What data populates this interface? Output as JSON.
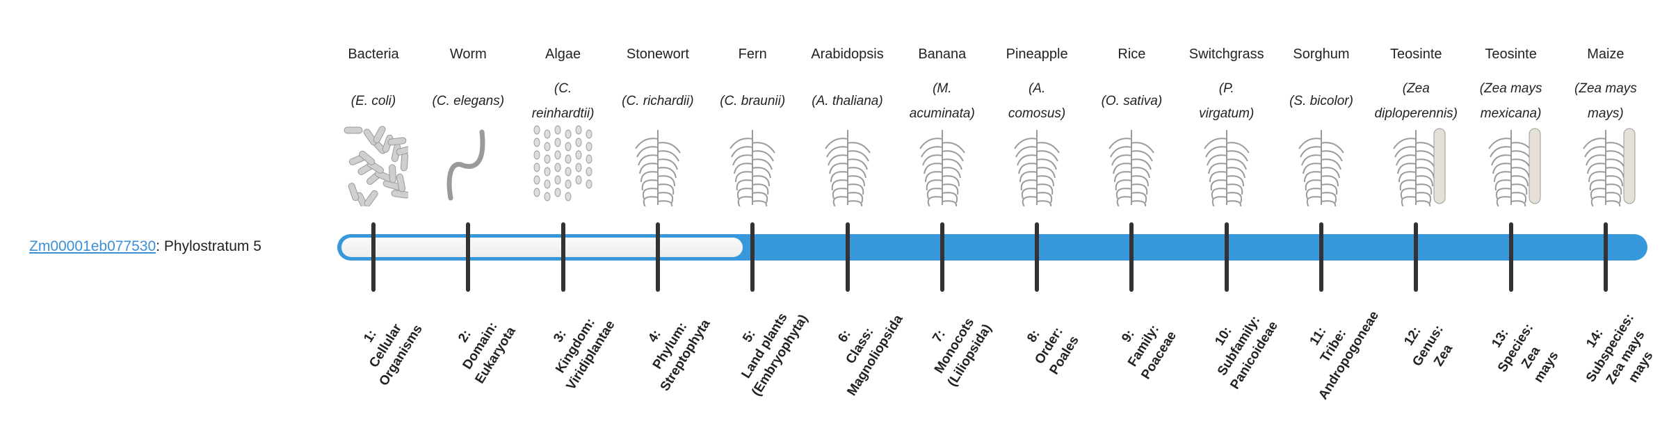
{
  "gene": {
    "id": "Zm00001eb077530",
    "suffix": ": Phylostratum 5"
  },
  "current_phylostratum": 5,
  "colors": {
    "bar": "#3798db",
    "tick": "#333333",
    "link": "#3a8fd6"
  },
  "organisms": [
    {
      "common": "Bacteria",
      "sci": [
        "(E. coli)"
      ],
      "stratum": [
        "1:",
        "Cellular",
        "Organisms"
      ],
      "icon": "bacteria"
    },
    {
      "common": "Worm",
      "sci": [
        "(C. elegans)"
      ],
      "stratum": [
        "2:",
        "Domain:",
        "Eukaryota"
      ],
      "icon": "worm"
    },
    {
      "common": "Algae",
      "sci": [
        "(C.",
        "reinhardtii)"
      ],
      "stratum": [
        "3:",
        "Kingdom:",
        "Viridiplantae"
      ],
      "icon": "algae"
    },
    {
      "common": "Stonewort",
      "sci": [
        "(C. richardii)"
      ],
      "stratum": [
        "4:",
        "Phylum:",
        "Streptophyta"
      ],
      "icon": "stonewort"
    },
    {
      "common": "Fern",
      "sci": [
        "(C. braunii)"
      ],
      "stratum": [
        "5:",
        "Land plants",
        "(Embryophyta)"
      ],
      "icon": "fern"
    },
    {
      "common": "Arabidopsis",
      "sci": [
        "(A. thaliana)"
      ],
      "stratum": [
        "6:",
        "Class:",
        "Magnoliopsida"
      ],
      "icon": "arabidopsis"
    },
    {
      "common": "Banana",
      "sci": [
        "(M.",
        "acuminata)"
      ],
      "stratum": [
        "7:",
        "Monocots",
        "(Liliopsida)"
      ],
      "icon": "banana"
    },
    {
      "common": "Pineapple",
      "sci": [
        "(A.",
        "comosus)"
      ],
      "stratum": [
        "8:",
        "Order:",
        "Poales"
      ],
      "icon": "pineapple"
    },
    {
      "common": "Rice",
      "sci": [
        "(O. sativa)"
      ],
      "stratum": [
        "9:",
        "Family:",
        "Poaceae"
      ],
      "icon": "rice"
    },
    {
      "common": "Switchgrass",
      "sci": [
        "(P.",
        "virgatum)"
      ],
      "stratum": [
        "10:",
        "Subfamily:",
        "Panicoideae"
      ],
      "icon": "switchgrass"
    },
    {
      "common": "Sorghum",
      "sci": [
        "(S. bicolor)"
      ],
      "stratum": [
        "11:",
        "Tribe:",
        "Andropogoneae"
      ],
      "icon": "sorghum"
    },
    {
      "common": "Teosinte",
      "sci": [
        "(Zea",
        "diploperennis)"
      ],
      "stratum": [
        "12:",
        "Genus:",
        "Zea"
      ],
      "icon": "teosinte"
    },
    {
      "common": "Teosinte",
      "sci": [
        "(Zea mays",
        "mexicana)"
      ],
      "stratum": [
        "13:",
        "Species:",
        "Zea",
        "mays"
      ],
      "icon": "teosinte"
    },
    {
      "common": "Maize",
      "sci": [
        "(Zea mays",
        "mays)"
      ],
      "stratum": [
        "14:",
        "Subspecies:",
        "Zea mays",
        "mays"
      ],
      "icon": "maize"
    }
  ]
}
